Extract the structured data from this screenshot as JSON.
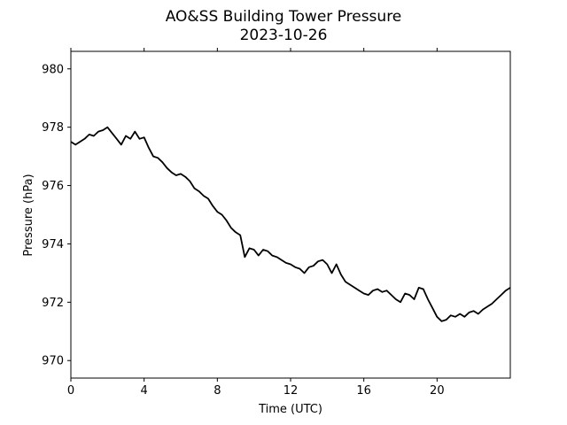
{
  "chart_data": {
    "type": "line",
    "title": "AO&SS Building Tower Pressure",
    "subtitle": "2023-10-26",
    "xlabel": "Time (UTC)",
    "ylabel": "Pressure (hPa)",
    "xlim": [
      0,
      24
    ],
    "ylim": [
      969.4,
      980.6
    ],
    "xticks": [
      0,
      4,
      8,
      12,
      16,
      20
    ],
    "yticks": [
      970,
      972,
      974,
      976,
      978,
      980
    ],
    "grid": false,
    "series": [
      {
        "color": "#000000",
        "x": [
          0,
          0.25,
          0.5,
          0.75,
          1.0,
          1.25,
          1.5,
          1.75,
          2.0,
          2.25,
          2.5,
          2.75,
          3.0,
          3.25,
          3.5,
          3.75,
          4.0,
          4.25,
          4.5,
          4.75,
          5.0,
          5.25,
          5.5,
          5.75,
          6.0,
          6.25,
          6.5,
          6.75,
          7.0,
          7.25,
          7.5,
          7.75,
          8.0,
          8.25,
          8.5,
          8.75,
          9.0,
          9.25,
          9.5,
          9.75,
          10.0,
          10.25,
          10.5,
          10.75,
          11.0,
          11.25,
          11.5,
          11.75,
          12.0,
          12.25,
          12.5,
          12.75,
          13.0,
          13.25,
          13.5,
          13.75,
          14.0,
          14.25,
          14.5,
          14.75,
          15.0,
          15.25,
          15.5,
          15.75,
          16.0,
          16.25,
          16.5,
          16.75,
          17.0,
          17.25,
          17.5,
          17.75,
          18.0,
          18.25,
          18.5,
          18.75,
          19.0,
          19.25,
          19.5,
          19.75,
          20.0,
          20.25,
          20.5,
          20.75,
          21.0,
          21.25,
          21.5,
          21.75,
          22.0,
          22.25,
          22.5,
          22.75,
          23.0,
          23.25,
          23.5,
          23.75,
          24.0
        ],
        "values": [
          977.5,
          977.4,
          977.5,
          977.6,
          977.75,
          977.7,
          977.85,
          977.9,
          978.0,
          977.8,
          977.6,
          977.4,
          977.7,
          977.6,
          977.85,
          977.6,
          977.65,
          977.3,
          977.0,
          976.95,
          976.8,
          976.6,
          976.45,
          976.35,
          976.4,
          976.3,
          976.15,
          975.9,
          975.8,
          975.65,
          975.55,
          975.3,
          975.1,
          975.0,
          974.8,
          974.55,
          974.4,
          974.3,
          973.55,
          973.85,
          973.8,
          973.6,
          973.8,
          973.75,
          973.6,
          973.55,
          973.45,
          973.35,
          973.3,
          973.2,
          973.15,
          973.0,
          973.2,
          973.25,
          973.4,
          973.45,
          973.3,
          973.0,
          973.3,
          972.95,
          972.7,
          972.6,
          972.5,
          972.4,
          972.3,
          972.25,
          972.4,
          972.45,
          972.35,
          972.4,
          972.25,
          972.1,
          972.0,
          972.3,
          972.25,
          972.1,
          972.5,
          972.45,
          972.1,
          971.8,
          971.5,
          971.35,
          971.4,
          971.55,
          971.5,
          971.6,
          971.5,
          971.65,
          971.7,
          971.6,
          971.75,
          971.85,
          971.95,
          972.1,
          972.25,
          972.4,
          972.5
        ]
      }
    ]
  }
}
